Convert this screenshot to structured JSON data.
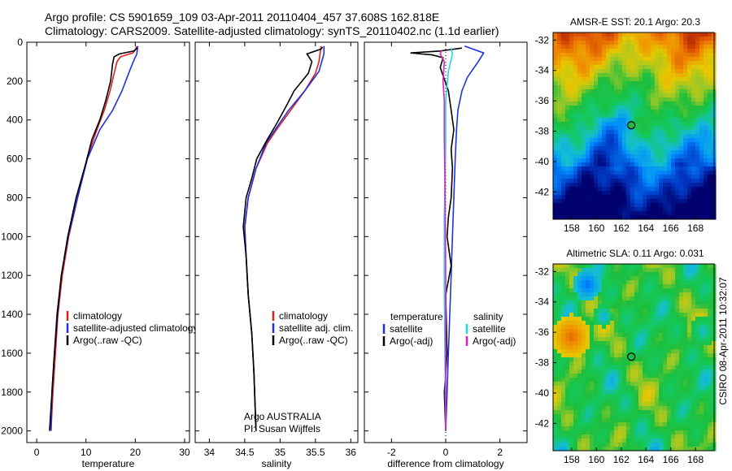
{
  "header": {
    "line1": "Argo profile: CS 5901659_109 03-Apr-2011 20110404_457 37.608S 162.818E",
    "line2": "Climatology: CARS2009. Satellite-adjusted climatology: synTS_20110402.nc (1.1d earlier)"
  },
  "credit": {
    "org": "Argo AUSTRALIA",
    "pi": "PI: Susan Wijffels",
    "stamp": "CSIRO 08-Apr-2011 10:32:07"
  },
  "chart_data": [
    {
      "id": "temperature",
      "type": "line",
      "xlabel": "temperature",
      "ylabel": "depth",
      "xlim": [
        -2,
        31
      ],
      "ylim": [
        2060,
        0
      ],
      "xticks": [
        0,
        10,
        20,
        30
      ],
      "yticks": [
        0,
        200,
        400,
        600,
        800,
        1000,
        1200,
        1400,
        1600,
        1800,
        2000
      ],
      "legend": [
        "climatology",
        "satellite-adjusted climatology",
        "Argo(..raw -QC)"
      ],
      "series": [
        {
          "name": "climatology",
          "color": "#e02020",
          "points": [
            [
              20.3,
              20
            ],
            [
              20,
              40
            ],
            [
              19.5,
              55
            ],
            [
              17,
              75
            ],
            [
              16.3,
              100
            ],
            [
              15.8,
              150
            ],
            [
              14.9,
              250
            ],
            [
              13.7,
              350
            ],
            [
              12.2,
              450
            ],
            [
              10.2,
              600
            ],
            [
              8.3,
              800
            ],
            [
              6.5,
              1000
            ],
            [
              5.2,
              1200
            ],
            [
              4.3,
              1400
            ],
            [
              3.8,
              1600
            ],
            [
              3.3,
              1800
            ],
            [
              2.9,
              2000
            ]
          ]
        },
        {
          "name": "satellite-adjusted climatology",
          "color": "#2030e0",
          "points": [
            [
              20.5,
              20
            ],
            [
              20.3,
              60
            ],
            [
              19.6,
              100
            ],
            [
              18.8,
              150
            ],
            [
              17.3,
              250
            ],
            [
              15.4,
              350
            ],
            [
              12.8,
              450
            ],
            [
              10.3,
              600
            ],
            [
              8.3,
              800
            ],
            [
              6.4,
              1000
            ],
            [
              5.0,
              1200
            ],
            [
              4.1,
              1400
            ],
            [
              3.6,
              1600
            ],
            [
              3.1,
              1800
            ],
            [
              2.9,
              2000
            ]
          ]
        },
        {
          "name": "Argo(..raw -QC)",
          "color": "#000000",
          "points": [
            [
              20.4,
              30
            ],
            [
              19.7,
              45
            ],
            [
              16.8,
              60
            ],
            [
              15.7,
              75
            ],
            [
              15.4,
              110
            ],
            [
              15.0,
              200
            ],
            [
              14.0,
              300
            ],
            [
              12.8,
              400
            ],
            [
              11.2,
              500
            ],
            [
              10.0,
              620
            ],
            [
              8.0,
              800
            ],
            [
              6.3,
              1000
            ],
            [
              5.0,
              1200
            ],
            [
              4.2,
              1400
            ],
            [
              3.6,
              1600
            ],
            [
              3.1,
              1800
            ],
            [
              2.6,
              2000
            ]
          ]
        }
      ]
    },
    {
      "id": "salinity",
      "type": "line",
      "xlabel": "salinity",
      "ylabel": "depth",
      "xlim": [
        33.8,
        36.1
      ],
      "ylim": [
        2060,
        0
      ],
      "xticks": [
        34,
        34.5,
        35,
        35.5,
        36
      ],
      "yticks": [
        0,
        200,
        400,
        600,
        800,
        1000,
        1200,
        1400,
        1600,
        1800,
        2000
      ],
      "legend": [
        "climatology",
        "satellite adj. clim.",
        "Argo(..raw -QC)"
      ],
      "series": [
        {
          "name": "climatology",
          "color": "#e02020",
          "points": [
            [
              35.58,
              20
            ],
            [
              35.55,
              100
            ],
            [
              35.5,
              160
            ],
            [
              35.35,
              250
            ],
            [
              35.15,
              350
            ],
            [
              34.95,
              450
            ],
            [
              34.82,
              520
            ],
            [
              34.66,
              650
            ],
            [
              34.55,
              800
            ],
            [
              34.5,
              950
            ],
            [
              34.52,
              1100
            ],
            [
              34.55,
              1300
            ],
            [
              34.6,
              1500
            ],
            [
              34.63,
              1700
            ],
            [
              34.65,
              1900
            ],
            [
              34.66,
              2000
            ]
          ]
        },
        {
          "name": "satellite adj. clim.",
          "color": "#2030e0",
          "points": [
            [
              35.62,
              20
            ],
            [
              35.62,
              60
            ],
            [
              35.55,
              150
            ],
            [
              35.35,
              250
            ],
            [
              35.12,
              350
            ],
            [
              34.93,
              450
            ],
            [
              34.8,
              520
            ],
            [
              34.66,
              650
            ],
            [
              34.55,
              800
            ],
            [
              34.5,
              950
            ],
            [
              34.52,
              1100
            ],
            [
              34.55,
              1300
            ],
            [
              34.6,
              1500
            ],
            [
              34.63,
              1700
            ],
            [
              34.65,
              1900
            ],
            [
              34.66,
              2000
            ]
          ]
        },
        {
          "name": "Argo(..raw -QC)",
          "color": "#000000",
          "points": [
            [
              35.6,
              25
            ],
            [
              35.58,
              35
            ],
            [
              35.38,
              60
            ],
            [
              35.45,
              100
            ],
            [
              35.4,
              160
            ],
            [
              35.2,
              250
            ],
            [
              35.1,
              320
            ],
            [
              34.95,
              420
            ],
            [
              34.82,
              500
            ],
            [
              34.67,
              600
            ],
            [
              34.6,
              700
            ],
            [
              34.52,
              800
            ],
            [
              34.48,
              950
            ],
            [
              34.52,
              1100
            ],
            [
              34.55,
              1300
            ],
            [
              34.6,
              1500
            ],
            [
              34.63,
              1700
            ],
            [
              34.65,
              1900
            ],
            [
              34.66,
              2000
            ]
          ]
        }
      ]
    },
    {
      "id": "difference",
      "type": "line",
      "xlabel": "difference from climatology",
      "ylabel": "depth",
      "xlim": [
        -3,
        3
      ],
      "ylim": [
        2060,
        0
      ],
      "xticks": [
        -2,
        0,
        2
      ],
      "yticks": [
        0,
        200,
        400,
        600,
        800,
        1000,
        1200,
        1400,
        1600,
        1800,
        2000
      ],
      "legend": [
        "temperature",
        "satellite",
        "Argo(-adj)",
        "salinity",
        "satellite",
        "Argo(-adj)"
      ],
      "series": [
        {
          "name": "temperature satellite",
          "color": "#2030e0",
          "points": [
            [
              0.7,
              20
            ],
            [
              1.4,
              55
            ],
            [
              1.2,
              100
            ],
            [
              0.8,
              180
            ],
            [
              0.6,
              250
            ],
            [
              0.45,
              350
            ],
            [
              0.4,
              450
            ],
            [
              0.35,
              600
            ],
            [
              0.3,
              800
            ],
            [
              0.25,
              1000
            ],
            [
              0.2,
              1200
            ],
            [
              0.15,
              1400
            ],
            [
              0.1,
              1600
            ],
            [
              0.05,
              1800
            ],
            [
              0,
              2000
            ]
          ]
        },
        {
          "name": "temperature Argo(-adj)",
          "color": "#000000",
          "points": [
            [
              0.6,
              30
            ],
            [
              -0.2,
              45
            ],
            [
              -1.3,
              55
            ],
            [
              -0.5,
              65
            ],
            [
              -0.1,
              80
            ],
            [
              -0.2,
              130
            ],
            [
              0.1,
              250
            ],
            [
              0.2,
              350
            ],
            [
              0.3,
              450
            ],
            [
              0.2,
              550
            ],
            [
              0.25,
              650
            ],
            [
              0.2,
              800
            ],
            [
              0.1,
              900
            ],
            [
              0.05,
              1000
            ],
            [
              0.2,
              1150
            ],
            [
              0,
              1300
            ],
            [
              0.05,
              1600
            ],
            [
              -0.05,
              1800
            ],
            [
              0,
              2000
            ]
          ]
        },
        {
          "name": "salinity satellite",
          "color": "#20d8d8",
          "points": [
            [
              0.2,
              30
            ],
            [
              0.25,
              60
            ],
            [
              0.1,
              150
            ],
            [
              0,
              300
            ],
            [
              0,
              500
            ],
            [
              -0.05,
              900
            ],
            [
              -0.05,
              1300
            ],
            [
              -0.03,
              1600
            ],
            [
              0,
              2000
            ]
          ]
        },
        {
          "name": "salinity Argo(-adj)",
          "color": "#e020c0",
          "points": [
            [
              -0.15,
              40
            ],
            [
              -0.2,
              60
            ],
            [
              -0.05,
              100
            ],
            [
              -0.1,
              200
            ],
            [
              -0.05,
              300
            ],
            [
              -0.05,
              500
            ],
            [
              -0.02,
              800
            ],
            [
              0,
              1200
            ],
            [
              0,
              2000
            ]
          ]
        }
      ]
    },
    {
      "id": "amsre_sst_map",
      "type": "heatmap",
      "title": "AMSR-E SST: 20.1 Argo: 20.3",
      "xlim": [
        156.5,
        169.5
      ],
      "ylim": [
        -43.8,
        -31.5
      ],
      "xticks": [
        158,
        160,
        162,
        164,
        166,
        168
      ],
      "yticks": [
        -32,
        -34,
        -36,
        -38,
        -40,
        -42
      ],
      "marker": {
        "lon": 162.818,
        "lat": -37.608
      }
    },
    {
      "id": "altimetric_sla_map",
      "type": "heatmap",
      "title": "Altimetric SLA: 0.11 Argo: 0.031",
      "xlim": [
        156.5,
        169.5
      ],
      "ylim": [
        -43.8,
        -31.5
      ],
      "xticks": [
        158,
        160,
        162,
        164,
        166,
        168
      ],
      "yticks": [
        -32,
        -34,
        -36,
        -38,
        -40,
        -42
      ],
      "marker": {
        "lon": 162.818,
        "lat": -37.608
      }
    }
  ]
}
